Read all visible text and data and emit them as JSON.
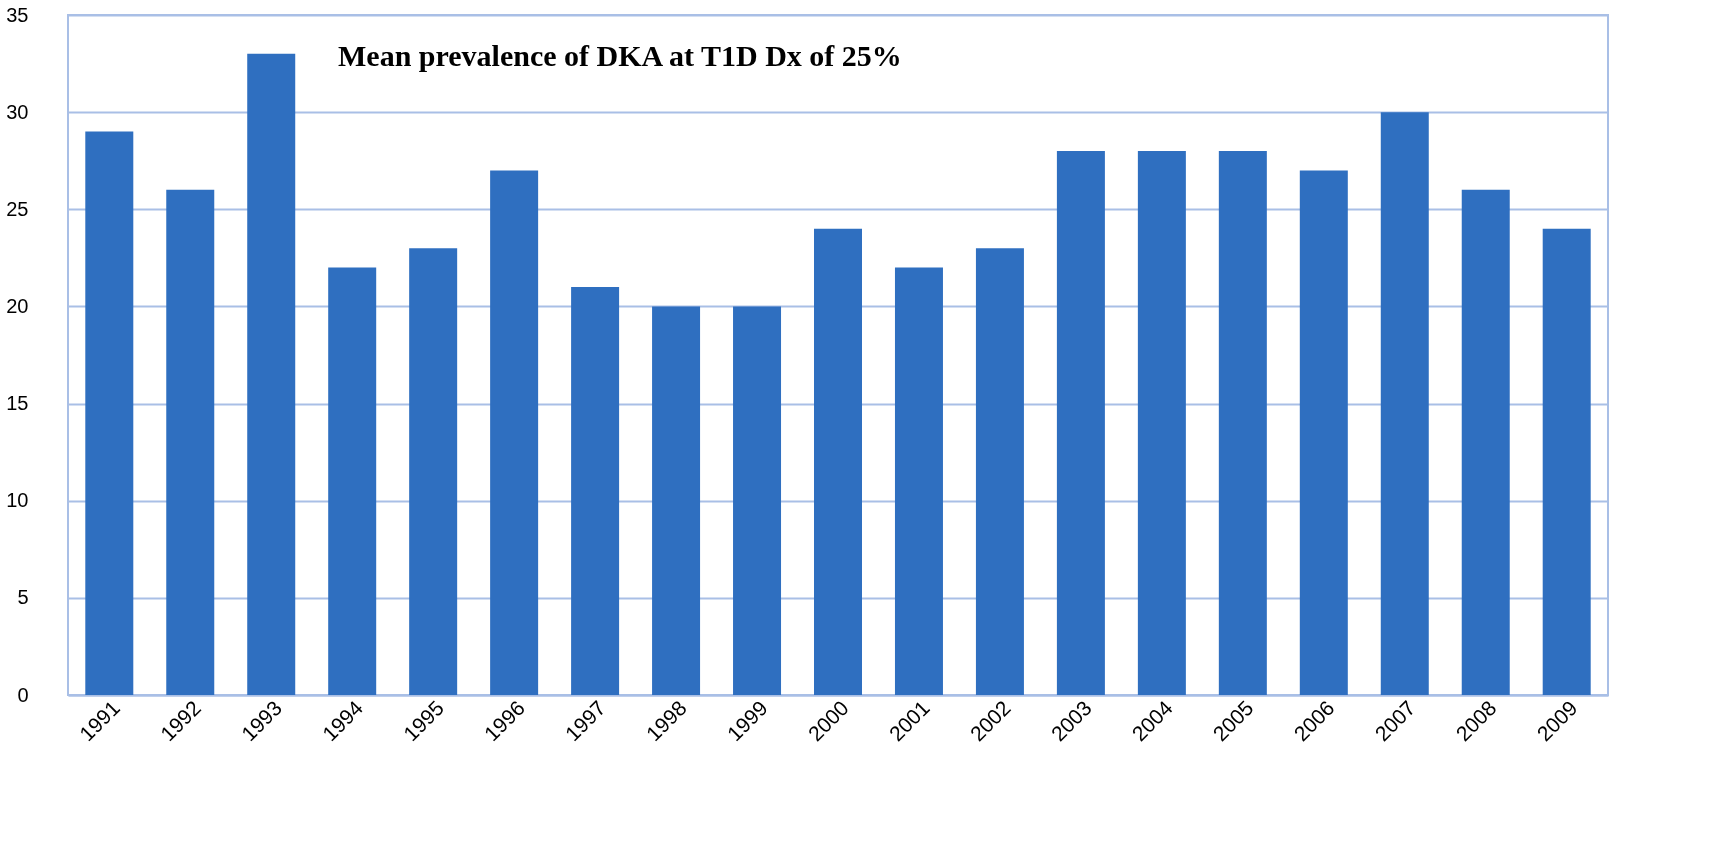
{
  "chart_data": {
    "type": "bar",
    "annotations": [
      "Mean prevalence of DKA at T1D Dx of 25%"
    ],
    "categories": [
      "1991",
      "1992",
      "1993",
      "1994",
      "1995",
      "1996",
      "1997",
      "1998",
      "1999",
      "2000",
      "2001",
      "2002",
      "2003",
      "2004",
      "2005",
      "2006",
      "2007",
      "2008",
      "2009"
    ],
    "values": [
      29,
      26,
      33,
      22,
      23,
      27,
      21,
      20,
      20,
      24,
      22,
      23,
      28,
      28,
      28,
      27,
      30,
      26,
      24
    ],
    "color": "#2f6fc0",
    "ylim": [
      0,
      35
    ],
    "yticks": [
      0,
      5,
      10,
      15,
      20,
      25,
      30,
      35
    ],
    "grid": "y"
  }
}
